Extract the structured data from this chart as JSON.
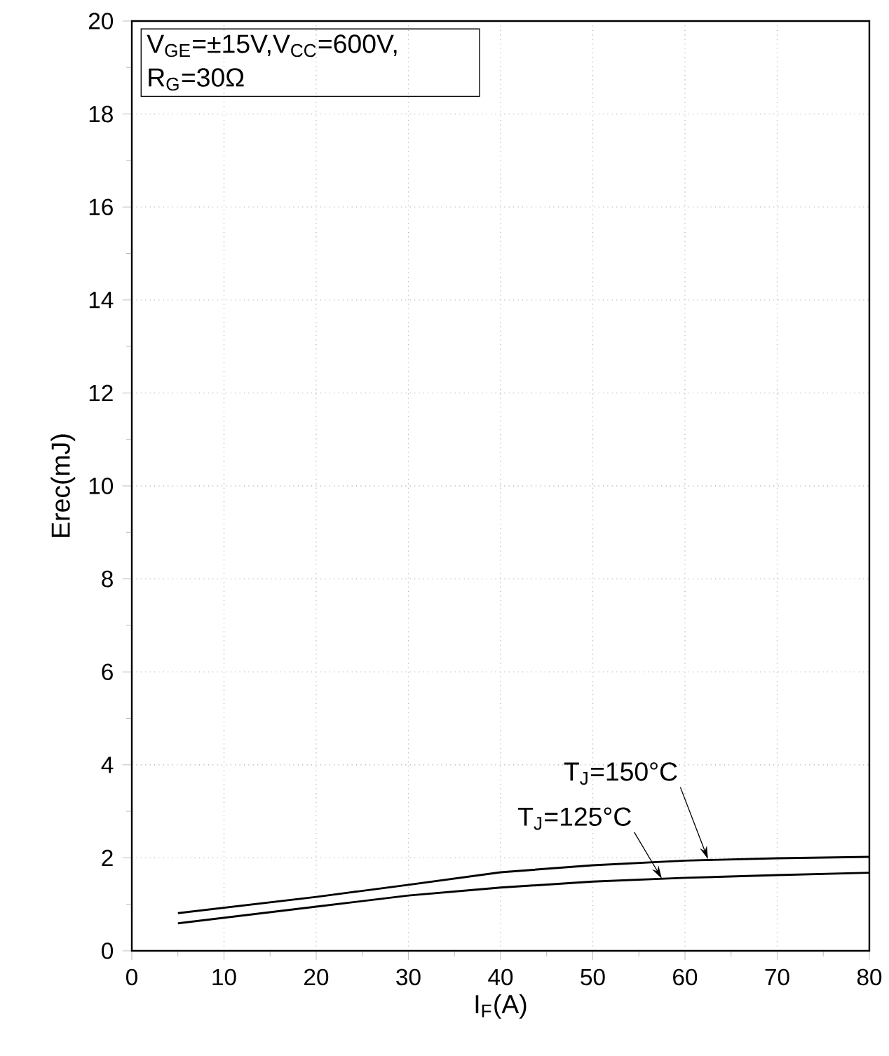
{
  "chart_data": {
    "type": "line",
    "xlabel": "I$_{F}$(A)",
    "ylabel": "Erec(mJ)",
    "x": [
      5,
      20,
      30,
      40,
      50,
      60,
      70,
      80
    ],
    "series": [
      {
        "color": "#000000",
        "values": [
          0.81,
          1.16,
          1.42,
          1.69,
          1.84,
          1.94,
          1.99,
          2.02
        ]
      },
      {
        "color": "#000000",
        "values": [
          0.59,
          0.95,
          1.19,
          1.36,
          1.49,
          1.57,
          1.63,
          1.68
        ]
      }
    ],
    "xlim": [
      0,
      80
    ],
    "ylim": [
      0,
      20
    ],
    "xticks": [
      0,
      10,
      20,
      30,
      40,
      50,
      60,
      70,
      80
    ],
    "yticks": [
      0,
      2,
      4,
      6,
      8,
      10,
      12,
      14,
      16,
      18,
      20
    ],
    "grid": true,
    "annotations": [
      "V$_{GE}$=±15V,V$_{CC}$=600V,",
      "R$_{G}$=30Ω",
      {
        "text": "T$_{J}$=150°C",
        "x": 62.5,
        "y": 1.97
      },
      {
        "text": "T$_{J}$=125°C",
        "x": 57.5,
        "y": 1.55
      }
    ]
  }
}
